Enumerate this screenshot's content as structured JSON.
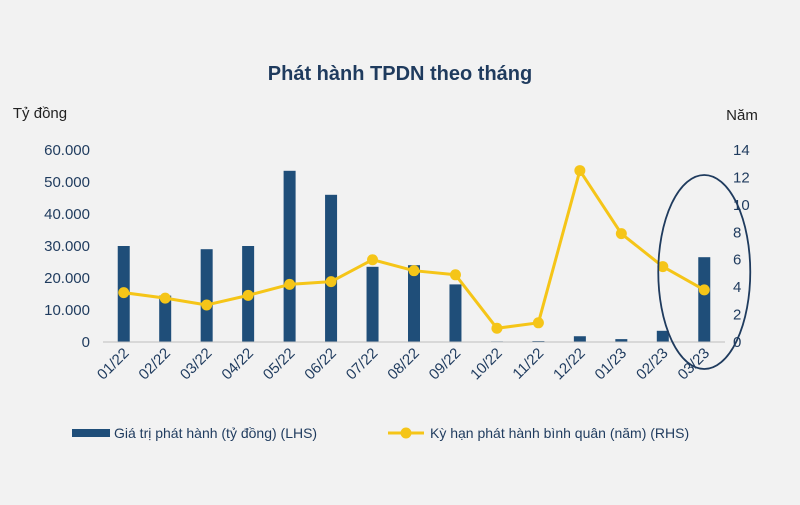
{
  "chart_data": {
    "type": "bar",
    "title": "Phát hành TPDN theo tháng",
    "left_axis_title": "Tỷ đồng",
    "right_axis_title": "Năm",
    "categories": [
      "01/22",
      "02/22",
      "03/22",
      "04/22",
      "05/22",
      "06/22",
      "07/22",
      "08/22",
      "09/22",
      "10/22",
      "11/22",
      "12/22",
      "01/23",
      "02/23",
      "03/23"
    ],
    "left_ticks": [
      "0",
      "10.000",
      "20.000",
      "30.000",
      "40.000",
      "50.000",
      "60.000"
    ],
    "right_ticks": [
      "0",
      "2",
      "4",
      "6",
      "8",
      "10",
      "12",
      "14"
    ],
    "ylim_left": [
      0,
      60000
    ],
    "ylim_right": [
      0,
      14
    ],
    "series": [
      {
        "name": "Giá trị phát hành (tỷ đồng) (LHS)",
        "type": "bar",
        "axis": "left",
        "color": "#1f4e79",
        "values": [
          30000,
          14500,
          29000,
          30000,
          53500,
          46000,
          23500,
          24000,
          18000,
          200,
          300,
          1800,
          900,
          3500,
          26500
        ]
      },
      {
        "name": "Kỳ hạn phát hành bình quân (năm) (RHS)",
        "type": "line",
        "axis": "right",
        "color": "#f5c518",
        "values": [
          3.6,
          3.2,
          2.7,
          3.4,
          4.2,
          4.4,
          6.0,
          5.2,
          4.9,
          1.0,
          1.4,
          12.5,
          7.9,
          5.5,
          3.8
        ]
      }
    ],
    "annotation": {
      "type": "ellipse",
      "label": "",
      "highlight_category": "03/23",
      "color": "#1f3b5e"
    },
    "legend_position": "bottom",
    "grid": false
  }
}
